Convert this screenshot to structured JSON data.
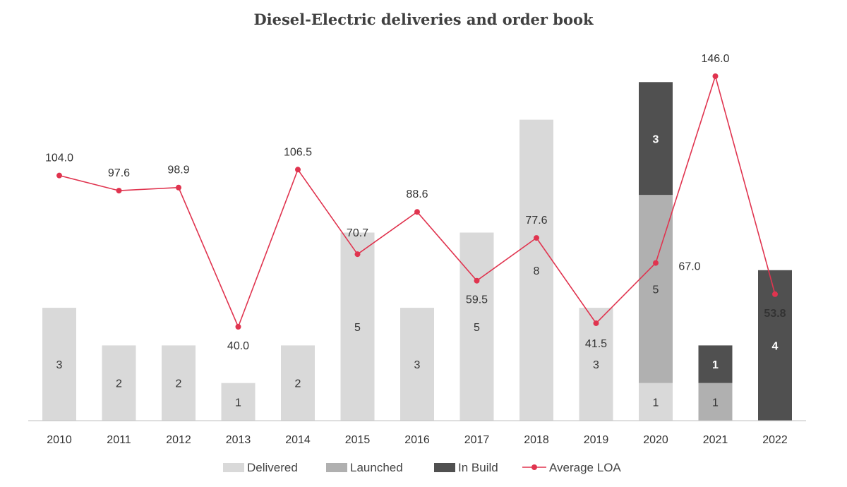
{
  "chart_data": {
    "type": "bar",
    "title": "Diesel-Electric deliveries and order book",
    "categories": [
      "2010",
      "2011",
      "2012",
      "2013",
      "2014",
      "2015",
      "2016",
      "2017",
      "2018",
      "2019",
      "2020",
      "2021",
      "2022"
    ],
    "stacked": true,
    "series": [
      {
        "name": "Delivered",
        "color": "#d9d9d9",
        "values": [
          3,
          2,
          2,
          1,
          2,
          5,
          3,
          5,
          8,
          3,
          1,
          0,
          0
        ]
      },
      {
        "name": "Launched",
        "color": "#b0b0b0",
        "values": [
          0,
          0,
          0,
          0,
          0,
          0,
          0,
          0,
          0,
          0,
          5,
          1,
          0
        ]
      },
      {
        "name": "In Build",
        "color": "#505050",
        "values": [
          0,
          0,
          0,
          0,
          0,
          0,
          0,
          0,
          0,
          0,
          3,
          1,
          4
        ]
      }
    ],
    "line_series": {
      "name": "Average LOA",
      "color": "#e0344f",
      "values": [
        104.0,
        97.6,
        98.9,
        40.0,
        106.5,
        70.7,
        88.6,
        59.5,
        77.6,
        41.5,
        67.0,
        146.0,
        53.8
      ],
      "labels": [
        "104.0",
        "97.6",
        "98.9",
        "40.0",
        "106.5",
        "70.7",
        "88.6",
        "59.5",
        "77.6",
        "41.5",
        "67.0",
        "146.0",
        "53.8"
      ]
    },
    "bar_ylim": [
      0,
      9
    ],
    "line_ylim": [
      0,
      160
    ],
    "grid": false,
    "legend_position": "bottom"
  }
}
